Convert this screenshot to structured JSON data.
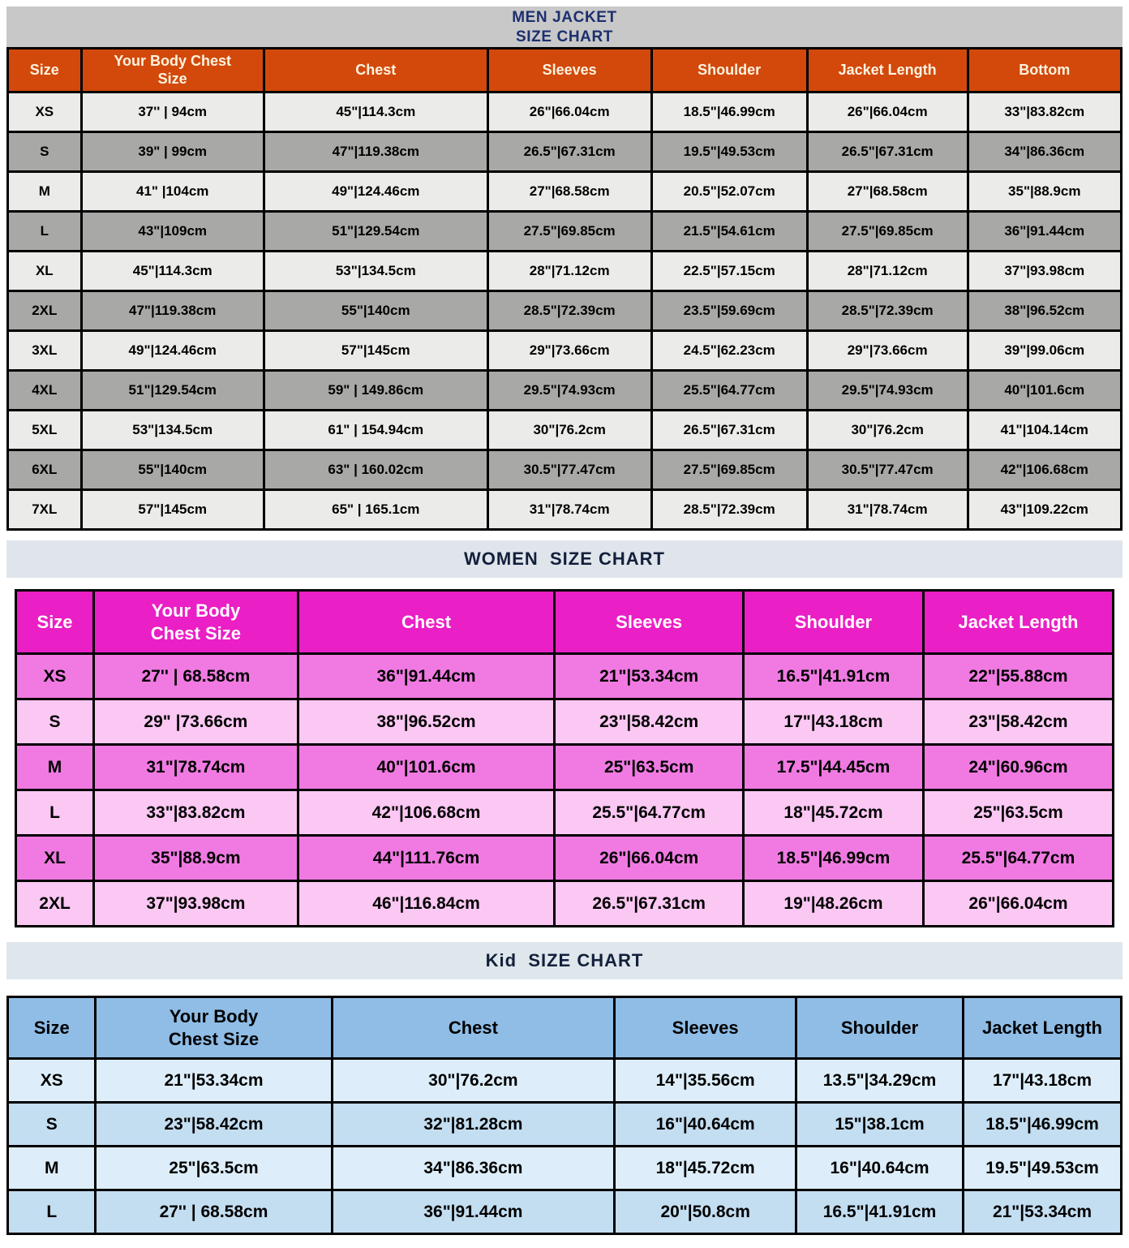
{
  "chart_data": [
    {
      "type": "table",
      "id": "men-jacket",
      "group": "Men",
      "title": "MEN JACKET\nSIZE CHART",
      "title_lines": [
        "MEN JACKET",
        "SIZE CHART"
      ],
      "columns": [
        "Size",
        "Your Body Chest\nSize",
        "Chest",
        "Sleeves",
        "Shoulder",
        "Jacket Length",
        "Bottom"
      ],
      "rows": [
        [
          "XS",
          "37'' | 94cm",
          "45\"|114.3cm",
          "26\"|66.04cm",
          "18.5\"|46.99cm",
          "26\"|66.04cm",
          "33\"|83.82cm"
        ],
        [
          "S",
          "39\" | 99cm",
          "47\"|119.38cm",
          "26.5\"|67.31cm",
          "19.5\"|49.53cm",
          "26.5\"|67.31cm",
          "34\"|86.36cm"
        ],
        [
          "M",
          "41\" |104cm",
          "49\"|124.46cm",
          "27\"|68.58cm",
          "20.5\"|52.07cm",
          "27\"|68.58cm",
          "35\"|88.9cm"
        ],
        [
          "L",
          "43\"|109cm",
          "51\"|129.54cm",
          "27.5\"|69.85cm",
          "21.5\"|54.61cm",
          "27.5\"|69.85cm",
          "36\"|91.44cm"
        ],
        [
          "XL",
          "45\"|114.3cm",
          "53\"|134.5cm",
          "28\"|71.12cm",
          "22.5\"|57.15cm",
          "28\"|71.12cm",
          "37\"|93.98cm"
        ],
        [
          "2XL",
          "47\"|119.38cm",
          "55\"|140cm",
          "28.5\"|72.39cm",
          "23.5\"|59.69cm",
          "28.5\"|72.39cm",
          "38\"|96.52cm"
        ],
        [
          "3XL",
          "49\"|124.46cm",
          "57\"|145cm",
          "29\"|73.66cm",
          "24.5\"|62.23cm",
          "29\"|73.66cm",
          "39\"|99.06cm"
        ],
        [
          "4XL",
          "51\"|129.54cm",
          "59\" | 149.86cm",
          "29.5\"|74.93cm",
          "25.5\"|64.77cm",
          "29.5\"|74.93cm",
          "40\"|101.6cm"
        ],
        [
          "5XL",
          "53\"|134.5cm",
          "61\" | 154.94cm",
          "30\"|76.2cm",
          "26.5\"|67.31cm",
          "30\"|76.2cm",
          "41\"|104.14cm"
        ],
        [
          "6XL",
          "55\"|140cm",
          "63\" | 160.02cm",
          "30.5\"|77.47cm",
          "27.5\"|69.85cm",
          "30.5\"|77.47cm",
          "42\"|106.68cm"
        ],
        [
          "7XL",
          "57\"|145cm",
          "65\" | 165.1cm",
          "31\"|78.74cm",
          "28.5\"|72.39cm",
          "31\"|78.74cm",
          "43\"|109.22cm"
        ]
      ],
      "style": {
        "title_band_bg": "#c8c8c8",
        "title_color": "#1c2f6e",
        "header_bg": "#d2490b",
        "header_text": "#fdf3e0",
        "row_bgs": [
          "#ebebe9",
          "#a8a8a6"
        ],
        "border_color": "#000000"
      }
    },
    {
      "type": "table",
      "id": "women",
      "group": "Women",
      "title": "WOMEN  SIZE CHART",
      "title_lines": [
        "WOMEN  SIZE CHART"
      ],
      "columns": [
        "Size",
        "Your Body\nChest Size",
        "Chest",
        "Sleeves",
        "Shoulder",
        "Jacket Length"
      ],
      "rows": [
        [
          "XS",
          "27'' | 68.58cm",
          "36\"|91.44cm",
          "21\"|53.34cm",
          "16.5\"|41.91cm",
          "22\"|55.88cm"
        ],
        [
          "S",
          "29\" |73.66cm",
          "38\"|96.52cm",
          "23\"|58.42cm",
          "17\"|43.18cm",
          "23\"|58.42cm"
        ],
        [
          "M",
          "31\"|78.74cm",
          "40\"|101.6cm",
          "25\"|63.5cm",
          "17.5\"|44.45cm",
          "24\"|60.96cm"
        ],
        [
          "L",
          "33\"|83.82cm",
          "42\"|106.68cm",
          "25.5\"|64.77cm",
          "18\"|45.72cm",
          "25\"|63.5cm"
        ],
        [
          "XL",
          "35\"|88.9cm",
          "44\"|111.76cm",
          "26\"|66.04cm",
          "18.5\"|46.99cm",
          "25.5\"|64.77cm"
        ],
        [
          "2XL",
          "37\"|93.98cm",
          "46\"|116.84cm",
          "26.5\"|67.31cm",
          "19\"|48.26cm",
          "26\"|66.04cm"
        ]
      ],
      "style": {
        "title_band_bg": "#dfe5eb",
        "title_color": "#13203c",
        "header_bg": "#ea1fc5",
        "header_text": "#ffffff",
        "row_bgs": [
          "#f07ae2",
          "#fbc7f3"
        ],
        "border_color": "#000000"
      }
    },
    {
      "type": "table",
      "id": "kid",
      "group": "Kid",
      "title": "Kid  SIZE CHART",
      "title_lines": [
        "Kid  SIZE CHART"
      ],
      "columns": [
        "Size",
        "Your Body\nChest Size",
        "Chest",
        "Sleeves",
        "Shoulder",
        "Jacket Length"
      ],
      "rows": [
        [
          "XS",
          "21\"|53.34cm",
          "30\"|76.2cm",
          "14\"|35.56cm",
          "13.5\"|34.29cm",
          "17\"|43.18cm"
        ],
        [
          "S",
          "23\"|58.42cm",
          "32\"|81.28cm",
          "16\"|40.64cm",
          "15\"|38.1cm",
          "18.5\"|46.99cm"
        ],
        [
          "M",
          "25\"|63.5cm",
          "34\"|86.36cm",
          "18\"|45.72cm",
          "16\"|40.64cm",
          "19.5\"|49.53cm"
        ],
        [
          "L",
          "27'' | 68.58cm",
          "36\"|91.44cm",
          "20\"|50.8cm",
          "16.5\"|41.91cm",
          "21\"|53.34cm"
        ]
      ],
      "style": {
        "title_band_bg": "#dfe6ec",
        "title_color": "#13203c",
        "header_bg": "#8fbde6",
        "header_text": "#000000",
        "row_bgs": [
          "#ddeefa",
          "#c3ddf1"
        ],
        "border_color": "#000000"
      }
    }
  ]
}
